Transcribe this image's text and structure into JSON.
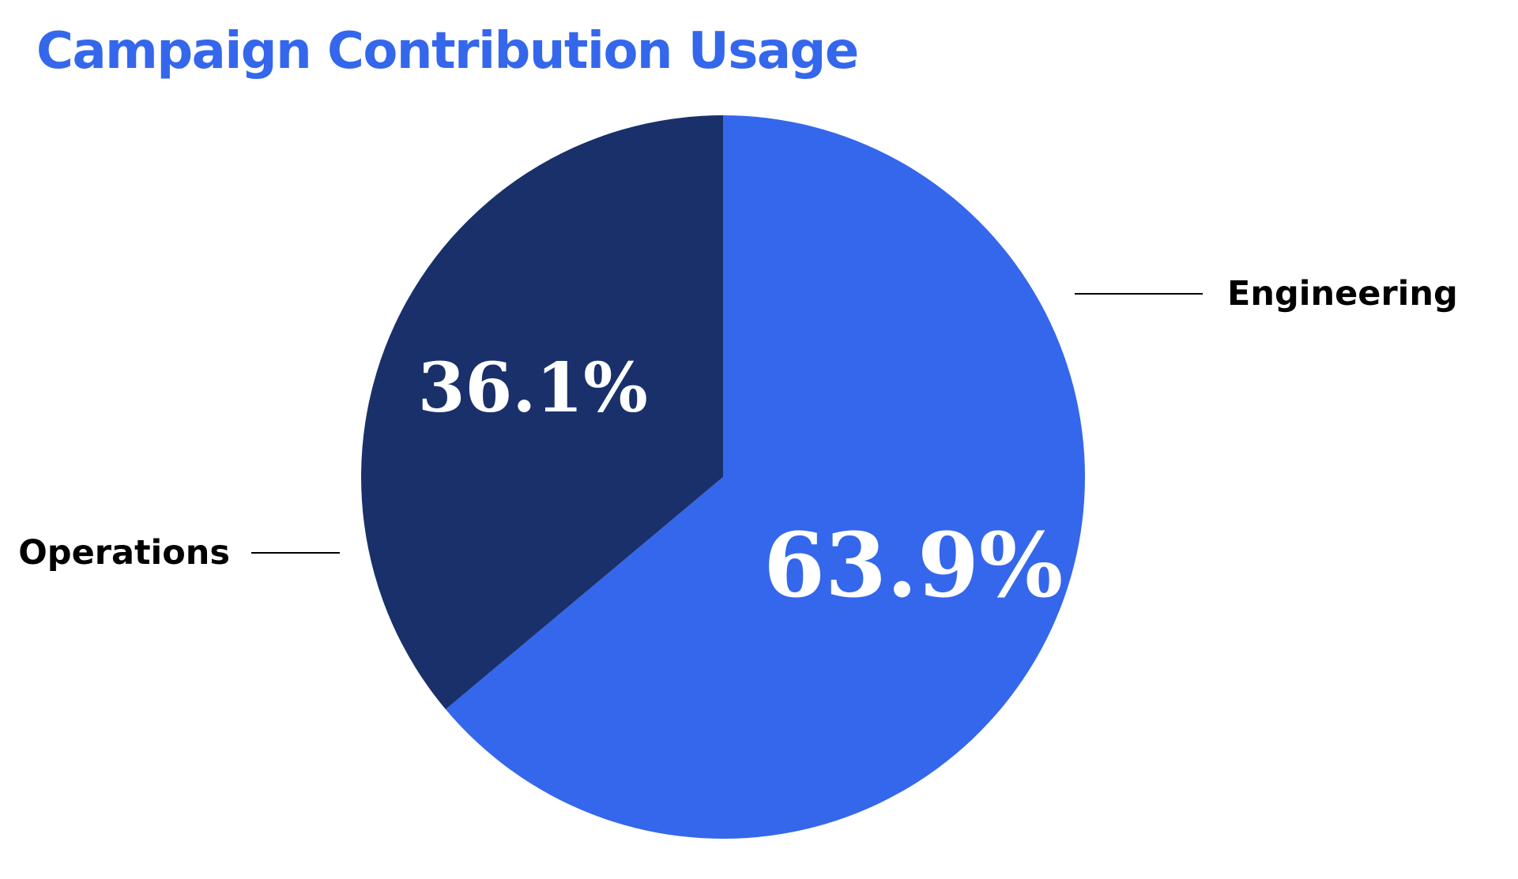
{
  "title": "Campaign Contribution Usage",
  "chart_data": {
    "type": "pie",
    "title": "Campaign Contribution Usage",
    "slices": [
      {
        "label": "Engineering",
        "value": 63.9,
        "value_label": "63.9%",
        "color": "#3467eb"
      },
      {
        "label": "Operations",
        "value": 36.1,
        "value_label": "36.1%",
        "color": "#19306b"
      }
    ],
    "start": "12 o'clock",
    "direction": "clockwise",
    "legend_placement": "callout labels beside slices"
  }
}
